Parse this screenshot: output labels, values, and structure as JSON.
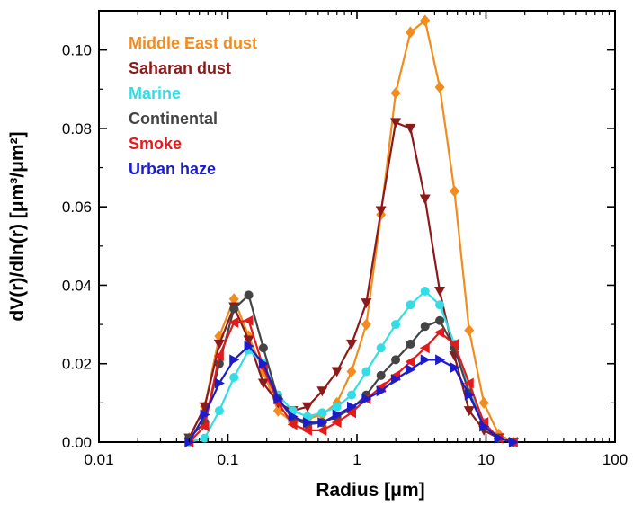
{
  "chart_data": {
    "type": "line",
    "xlabel": "Radius [μm]",
    "ylabel": "dV(r)/dln(r) [μm³/μm²]",
    "x_scale": "log",
    "xlim": [
      0.01,
      100
    ],
    "ylim": [
      0,
      0.11
    ],
    "x_ticks": [
      0.01,
      0.1,
      1,
      10,
      100
    ],
    "x_tick_labels": [
      "0.01",
      "0.1",
      "1",
      "10",
      "100"
    ],
    "y_ticks": [
      0,
      0.02,
      0.04,
      0.06,
      0.08,
      0.1
    ],
    "y_tick_labels": [
      "0.00",
      "0.02",
      "0.04",
      "0.06",
      "0.08",
      "0.10"
    ],
    "grid": false,
    "legend_position": "top-left",
    "series": [
      {
        "name": "Middle East dust",
        "color": "#F28C1E",
        "marker": "diamond",
        "x": [
          0.05,
          0.066,
          0.0857,
          0.1114,
          0.1448,
          0.1882,
          0.2447,
          0.3181,
          0.4135,
          0.5375,
          0.6988,
          0.9084,
          1.181,
          1.535,
          1.995,
          2.594,
          3.372,
          4.383,
          5.698,
          7.407,
          9.629,
          12.52,
          16.27
        ],
        "y": [
          0.001,
          0.009,
          0.027,
          0.0365,
          0.027,
          0.018,
          0.008,
          0.005,
          0.006,
          0.007,
          0.01,
          0.018,
          0.03,
          0.058,
          0.089,
          0.1045,
          0.1075,
          0.0905,
          0.064,
          0.0285,
          0.01,
          0.002,
          0.0
        ]
      },
      {
        "name": "Saharan dust",
        "color": "#8B1A1A",
        "marker": "triangle-down",
        "x": [
          0.05,
          0.066,
          0.0857,
          0.1114,
          0.1448,
          0.1882,
          0.2447,
          0.3181,
          0.4135,
          0.5375,
          0.6988,
          0.9084,
          1.181,
          1.535,
          1.995,
          2.594,
          3.372,
          4.383,
          5.698,
          7.407,
          9.629,
          12.52,
          16.27
        ],
        "y": [
          0.001,
          0.009,
          0.025,
          0.0345,
          0.026,
          0.015,
          0.01,
          0.008,
          0.009,
          0.013,
          0.018,
          0.025,
          0.0355,
          0.059,
          0.0815,
          0.08,
          0.062,
          0.0385,
          0.022,
          0.008,
          0.003,
          0.001,
          0.0
        ]
      },
      {
        "name": "Marine",
        "color": "#33DDE6",
        "marker": "circle",
        "x": [
          0.05,
          0.066,
          0.0857,
          0.1114,
          0.1448,
          0.1882,
          0.2447,
          0.3181,
          0.4135,
          0.5375,
          0.6988,
          0.9084,
          1.181,
          1.535,
          1.995,
          2.594,
          3.372,
          4.383,
          5.698,
          7.407,
          9.629,
          12.52,
          16.27
        ],
        "y": [
          0.0,
          0.001,
          0.008,
          0.0165,
          0.0235,
          0.02,
          0.012,
          0.008,
          0.0065,
          0.0075,
          0.009,
          0.012,
          0.018,
          0.024,
          0.03,
          0.035,
          0.0385,
          0.035,
          0.025,
          0.013,
          0.005,
          0.001,
          0.0
        ]
      },
      {
        "name": "Continental",
        "color": "#444444",
        "marker": "circle",
        "x": [
          0.05,
          0.066,
          0.0857,
          0.1114,
          0.1448,
          0.1882,
          0.2447,
          0.3181,
          0.4135,
          0.5375,
          0.6988,
          0.9084,
          1.181,
          1.535,
          1.995,
          2.594,
          3.372,
          4.383,
          5.698,
          7.407,
          9.629,
          12.52,
          16.27
        ],
        "y": [
          0.001,
          0.005,
          0.02,
          0.034,
          0.0375,
          0.024,
          0.011,
          0.006,
          0.0045,
          0.005,
          0.0065,
          0.0085,
          0.012,
          0.017,
          0.021,
          0.025,
          0.0295,
          0.031,
          0.024,
          0.0125,
          0.004,
          0.001,
          0.0
        ]
      },
      {
        "name": "Smoke",
        "color": "#E31A1C",
        "marker": "triangle-left",
        "x": [
          0.05,
          0.066,
          0.0857,
          0.1114,
          0.1448,
          0.1882,
          0.2447,
          0.3181,
          0.4135,
          0.5375,
          0.6988,
          0.9084,
          1.181,
          1.535,
          1.995,
          2.594,
          3.372,
          4.383,
          5.698,
          7.407,
          9.629,
          12.52,
          16.27
        ],
        "y": [
          0.0,
          0.004,
          0.022,
          0.0305,
          0.031,
          0.019,
          0.01,
          0.0045,
          0.003,
          0.003,
          0.005,
          0.0075,
          0.011,
          0.014,
          0.017,
          0.0205,
          0.024,
          0.028,
          0.025,
          0.015,
          0.005,
          0.001,
          0.0
        ]
      },
      {
        "name": "Urban haze",
        "color": "#1C1CCC",
        "marker": "triangle-right",
        "x": [
          0.05,
          0.066,
          0.0857,
          0.1114,
          0.1448,
          0.1882,
          0.2447,
          0.3181,
          0.4135,
          0.5375,
          0.6988,
          0.9084,
          1.181,
          1.535,
          1.995,
          2.594,
          3.372,
          4.383,
          5.698,
          7.407,
          9.629,
          12.52,
          16.27
        ],
        "y": [
          0.0,
          0.007,
          0.015,
          0.021,
          0.0245,
          0.02,
          0.011,
          0.0065,
          0.005,
          0.005,
          0.007,
          0.009,
          0.011,
          0.013,
          0.016,
          0.0185,
          0.021,
          0.021,
          0.019,
          0.012,
          0.004,
          0.001,
          0.0
        ]
      }
    ]
  }
}
